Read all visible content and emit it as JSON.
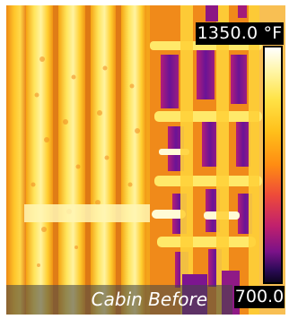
{
  "thermal_image": {
    "scale_max": "1350.0 °F",
    "scale_min": "700.0",
    "caption": "Cabin Before",
    "palette": [
      "#ffffff",
      "#fff6a8",
      "#ffe347",
      "#ffbf1a",
      "#ff8c12",
      "#ee4a3a",
      "#c0206d",
      "#7a1288",
      "#2a0a55",
      "#0d0420"
    ]
  }
}
